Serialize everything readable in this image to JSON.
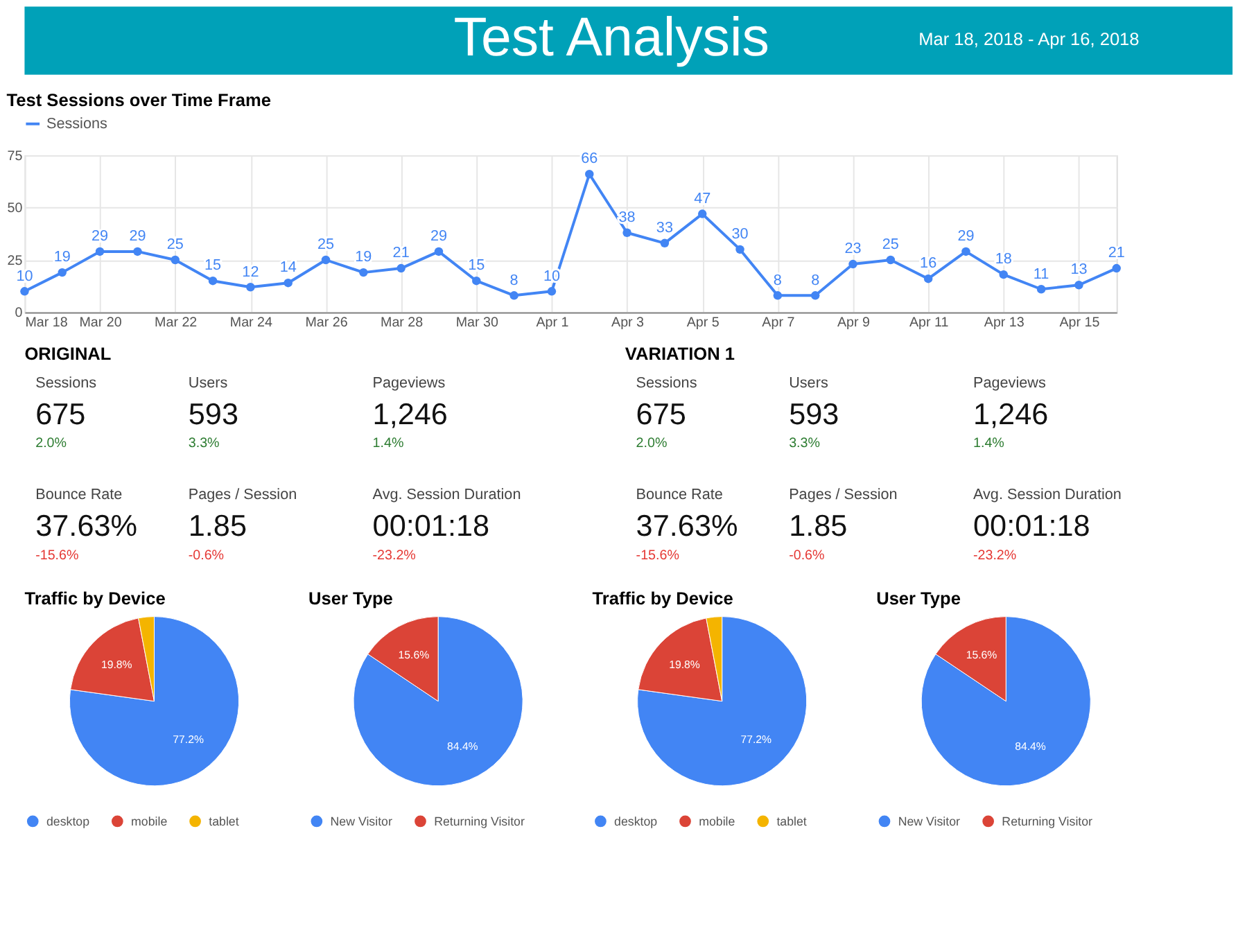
{
  "chart_data": [
    {
      "type": "other",
      "title": "Test Analysis",
      "annotations": [
        "Mar 18, 2018 - Apr 16, 2018"
      ]
    },
    {
      "type": "line",
      "title": "Test Sessions over Time Frame",
      "x": [
        "2018-03-18",
        "2018-03-19",
        "2018-03-20",
        "2018-03-21",
        "2018-03-22",
        "2018-03-23",
        "2018-03-24",
        "2018-03-25",
        "2018-03-26",
        "2018-03-27",
        "2018-03-28",
        "2018-03-29",
        "2018-03-30",
        "2018-03-31",
        "2018-04-01",
        "2018-04-02",
        "2018-04-03",
        "2018-04-04",
        "2018-04-05",
        "2018-04-06",
        "2018-04-07",
        "2018-04-08",
        "2018-04-09",
        "2018-04-10",
        "2018-04-11",
        "2018-04-12",
        "2018-04-13",
        "2018-04-14",
        "2018-04-15",
        "2018-04-16"
      ],
      "series": [
        {
          "name": "Sessions",
          "color": "#4285f4",
          "values": [
            10,
            19,
            29,
            29,
            25,
            15,
            12,
            14,
            25,
            19,
            21,
            29,
            15,
            8,
            10,
            66,
            38,
            33,
            47,
            30,
            8,
            8,
            23,
            25,
            16,
            29,
            18,
            11,
            13,
            21
          ]
        }
      ],
      "xlim": [
        "2018-03-18",
        "2018-04-16"
      ],
      "xticks": [
        {
          "value": "2018-03-18",
          "label": "Mar 18"
        },
        {
          "value": "2018-03-20",
          "label": "Mar 20"
        },
        {
          "value": "2018-03-22",
          "label": "Mar 22"
        },
        {
          "value": "2018-03-24",
          "label": "Mar 24"
        },
        {
          "value": "2018-03-26",
          "label": "Mar 26"
        },
        {
          "value": "2018-03-28",
          "label": "Mar 28"
        },
        {
          "value": "2018-03-30",
          "label": "Mar 30"
        },
        {
          "value": "2018-04-01",
          "label": "Apr 1"
        },
        {
          "value": "2018-04-03",
          "label": "Apr 3"
        },
        {
          "value": "2018-04-05",
          "label": "Apr 5"
        },
        {
          "value": "2018-04-07",
          "label": "Apr 7"
        },
        {
          "value": "2018-04-09",
          "label": "Apr 9"
        },
        {
          "value": "2018-04-11",
          "label": "Apr 11"
        },
        {
          "value": "2018-04-13",
          "label": "Apr 13"
        },
        {
          "value": "2018-04-15",
          "label": "Apr 15"
        }
      ],
      "ylim": [
        0,
        75
      ],
      "yticks": [
        0,
        25,
        50,
        75
      ],
      "grid": true,
      "legend": "top left",
      "marker": "circle",
      "line_style": "solid",
      "data_labels": true
    },
    {
      "type": "other",
      "title": "ORIGINAL",
      "annotations": [
        "Sessions",
        "675",
        "2.0%",
        "Users",
        "593",
        "3.3%",
        "Pageviews",
        "1,246",
        "1.4%",
        "Bounce Rate",
        "37.63%",
        "-15.6%",
        "Pages / Session",
        "1.85",
        "-0.6%",
        "Avg. Session Duration",
        "00:01:18",
        "-23.2%"
      ]
    },
    {
      "type": "other",
      "title": "VARIATION 1",
      "annotations": [
        "Sessions",
        "675",
        "2.0%",
        "Users",
        "593",
        "3.3%",
        "Pageviews",
        "1,246",
        "1.4%",
        "Bounce Rate",
        "37.63%",
        "-15.6%",
        "Pages / Session",
        "1.85",
        "-0.6%",
        "Avg. Session Duration",
        "00:01:18",
        "-23.2%"
      ]
    },
    {
      "type": "pie",
      "title": "Traffic by Device",
      "categories": [
        "desktop",
        "mobile",
        "tablet"
      ],
      "values": [
        77.2,
        19.8,
        3.0
      ],
      "colors": [
        "#4285f4",
        "#db4437",
        "#f4b400"
      ],
      "value_labels": [
        "77.2%",
        "19.8%",
        null
      ],
      "legend": "bottom"
    },
    {
      "type": "pie",
      "title": "User Type",
      "categories": [
        "New Visitor",
        "Returning Visitor"
      ],
      "values": [
        84.4,
        15.6
      ],
      "colors": [
        "#4285f4",
        "#db4437"
      ],
      "value_labels": [
        "84.4%",
        "15.6%"
      ],
      "legend": "bottom"
    },
    {
      "type": "pie",
      "title": "Traffic by Device",
      "categories": [
        "desktop",
        "mobile",
        "tablet"
      ],
      "values": [
        77.2,
        19.8,
        3.0
      ],
      "colors": [
        "#4285f4",
        "#db4437",
        "#f4b400"
      ],
      "value_labels": [
        "77.2%",
        "19.8%",
        null
      ],
      "legend": "bottom"
    },
    {
      "type": "pie",
      "title": "User Type",
      "categories": [
        "New Visitor",
        "Returning Visitor"
      ],
      "values": [
        84.4,
        15.6
      ],
      "colors": [
        "#4285f4",
        "#db4437"
      ],
      "value_labels": [
        "84.4%",
        "15.6%"
      ],
      "legend": "bottom"
    }
  ]
}
